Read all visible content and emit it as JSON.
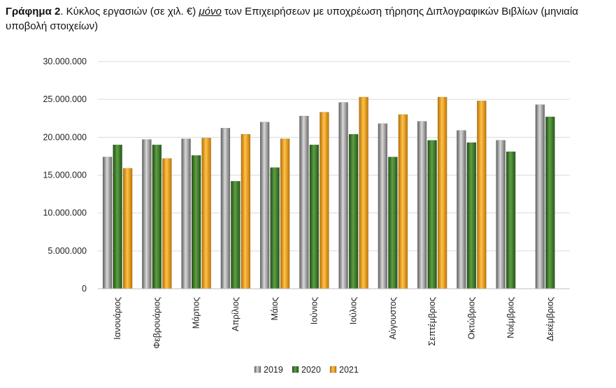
{
  "caption": {
    "label": "Γράφημα 2",
    "part1": ". Κύκλος εργασιών (σε χιλ. €) ",
    "emph": "μόνο",
    "part2": " των Επιχειρήσεων με υποχρέωση τήρησης Διπλογραφικών Βιβλίων (μηνιαία υποβολή στοιχείων)"
  },
  "chart_data": {
    "type": "bar",
    "categories": [
      "Ιανουάριος",
      "Φεβρουάριος",
      "Μάρτιος",
      "Απρίλιος",
      "Μάιος",
      "Ιούνιος",
      "Ιούλιος",
      "Αύγουστος",
      "Σεπτέμβριος",
      "Οκτώβριος",
      "Νοέμβριος",
      "Δεκέμβριος"
    ],
    "series": [
      {
        "name": "2019",
        "color": "#9a9a9a",
        "values": [
          17400000,
          19700000,
          19800000,
          21200000,
          22000000,
          22800000,
          24600000,
          21800000,
          22100000,
          20900000,
          19600000,
          24300000
        ]
      },
      {
        "name": "2020",
        "color": "#3c7a2a",
        "values": [
          19000000,
          19000000,
          17600000,
          14200000,
          16000000,
          19000000,
          20400000,
          17400000,
          19600000,
          19300000,
          18100000,
          22700000
        ]
      },
      {
        "name": "2021",
        "color": "#f5a30a",
        "values": [
          15900000,
          17200000,
          19900000,
          20400000,
          19800000,
          23300000,
          25300000,
          23000000,
          25300000,
          24800000,
          null,
          null
        ]
      }
    ],
    "yticks": [
      "0",
      "5.000.000",
      "10.000.000",
      "15.000.000",
      "20.000.000",
      "25.000.000",
      "30.000.000"
    ],
    "ylim": [
      0,
      30000000
    ],
    "grid": true,
    "legend": "bottom"
  }
}
